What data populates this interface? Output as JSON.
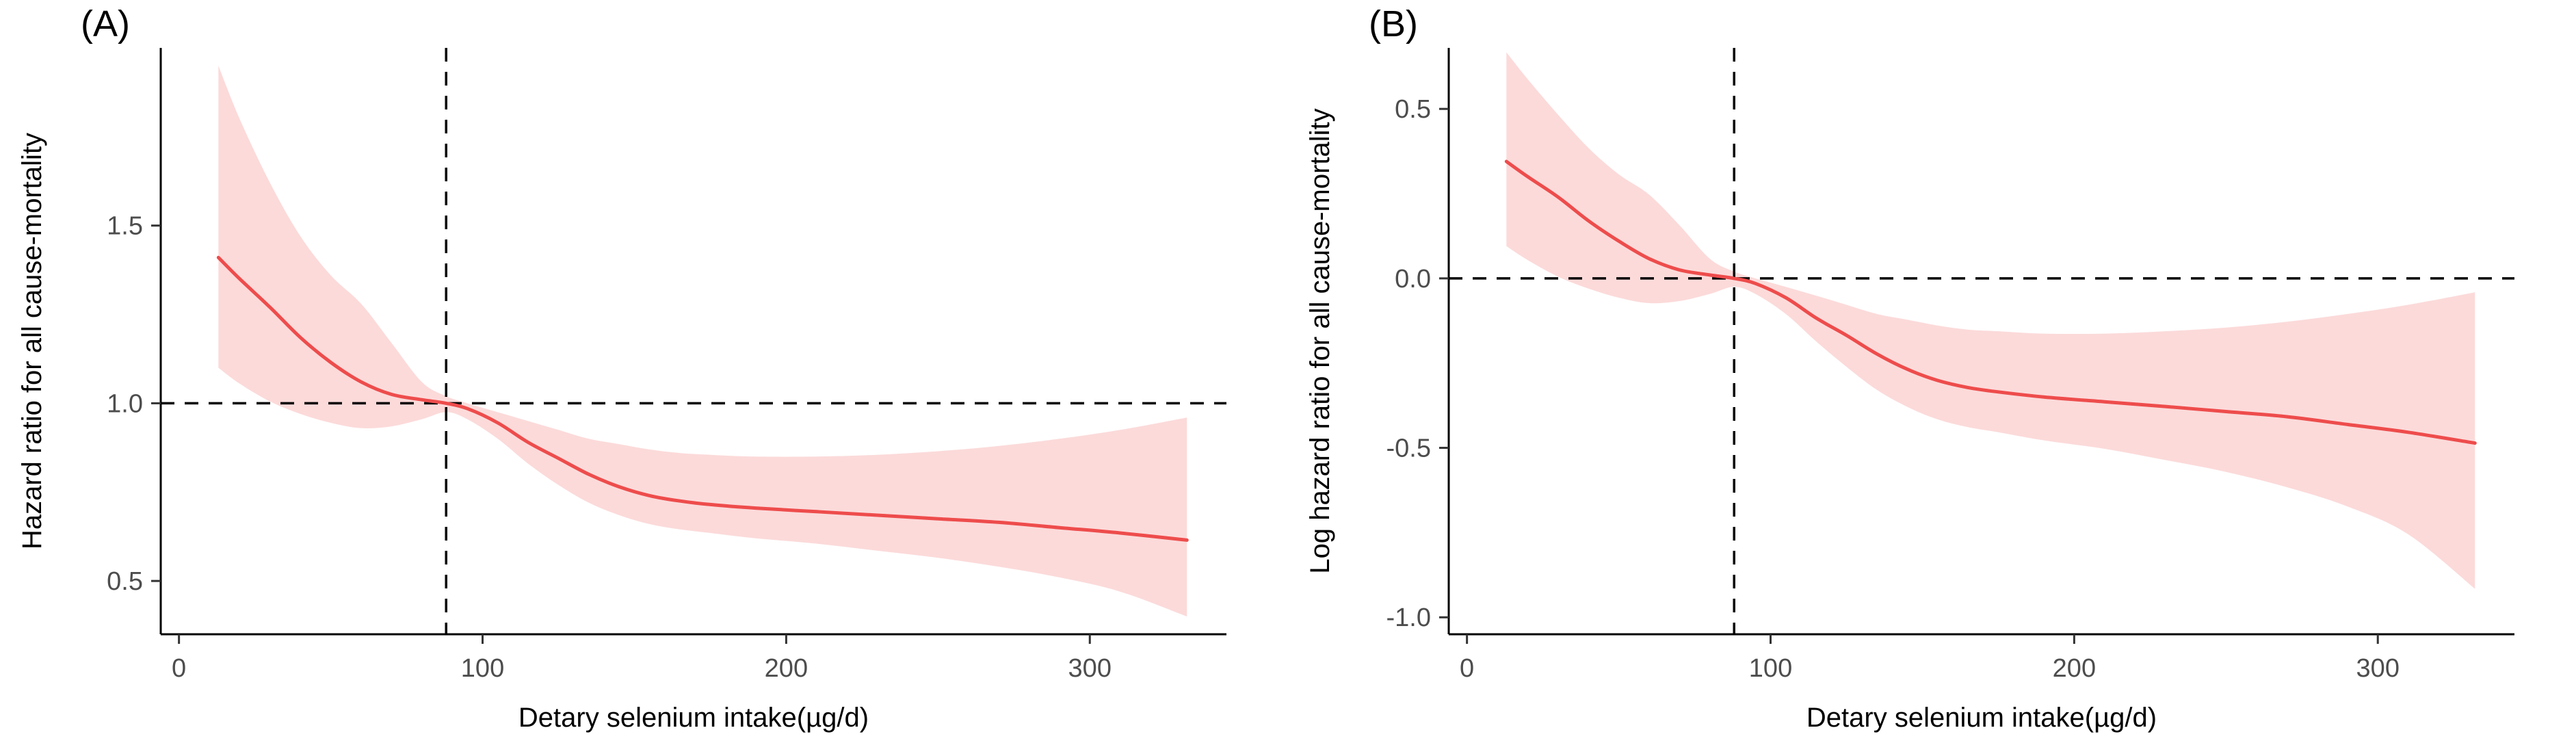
{
  "page": {
    "background": "#ffffff"
  },
  "panels": [
    {
      "label": "(A)"
    },
    {
      "label": "(B)"
    }
  ],
  "chart_data": [
    {
      "type": "line",
      "title": "",
      "xlabel": "Detary selenium intake(µg/d)",
      "ylabel": "Hazard ratio for all cause-mortality",
      "xlim": [
        -6,
        345
      ],
      "ylim": [
        0.35,
        2.0
      ],
      "grid": false,
      "legend": "none",
      "xticks": {
        "values": [
          0,
          100,
          200,
          300
        ],
        "labels": [
          "0",
          "100",
          "200",
          "300"
        ]
      },
      "yticks": {
        "values": [
          0.5,
          1.0,
          1.5
        ],
        "labels": [
          "0.5",
          "1.0",
          "1.5"
        ]
      },
      "reference_lines": {
        "h": 1.0,
        "v": 88
      },
      "colors": {
        "line": "#ee4c4c",
        "band": "#fcdada",
        "reference": "#000000"
      },
      "series": [
        {
          "name": "spline",
          "x": [
            13,
            20,
            30,
            40,
            50,
            60,
            70,
            80,
            88,
            95,
            105,
            115,
            125,
            135,
            145,
            155,
            165,
            175,
            190,
            210,
            230,
            250,
            270,
            290,
            310,
            332
          ],
          "y": [
            1.41,
            1.35,
            1.27,
            1.185,
            1.115,
            1.06,
            1.025,
            1.01,
            1.0,
            0.985,
            0.945,
            0.89,
            0.845,
            0.8,
            0.765,
            0.74,
            0.725,
            0.715,
            0.705,
            0.695,
            0.685,
            0.675,
            0.665,
            0.65,
            0.635,
            0.615
          ]
        },
        {
          "name": "ci_upper",
          "x": [
            13,
            20,
            30,
            40,
            50,
            60,
            70,
            80,
            88,
            95,
            105,
            115,
            125,
            135,
            145,
            155,
            165,
            175,
            190,
            210,
            230,
            250,
            270,
            290,
            310,
            332
          ],
          "y": [
            1.95,
            1.8,
            1.62,
            1.47,
            1.36,
            1.28,
            1.17,
            1.06,
            1.02,
            1.0,
            0.975,
            0.95,
            0.925,
            0.9,
            0.885,
            0.87,
            0.86,
            0.855,
            0.85,
            0.85,
            0.855,
            0.865,
            0.88,
            0.9,
            0.925,
            0.96
          ]
        },
        {
          "name": "ci_lower",
          "x": [
            13,
            20,
            30,
            40,
            50,
            60,
            70,
            80,
            88,
            95,
            105,
            115,
            125,
            135,
            145,
            155,
            165,
            175,
            190,
            210,
            230,
            250,
            270,
            290,
            310,
            332
          ],
          "y": [
            1.1,
            1.055,
            1.005,
            0.97,
            0.945,
            0.93,
            0.935,
            0.955,
            0.975,
            0.955,
            0.9,
            0.83,
            0.77,
            0.72,
            0.685,
            0.66,
            0.645,
            0.635,
            0.62,
            0.605,
            0.585,
            0.565,
            0.54,
            0.51,
            0.47,
            0.4
          ]
        }
      ]
    },
    {
      "type": "line",
      "title": "",
      "xlabel": "Detary selenium intake(µg/d)",
      "ylabel": "Log hazard ratio for all cause-mortality",
      "xlim": [
        -6,
        345
      ],
      "ylim": [
        -1.05,
        0.68
      ],
      "grid": false,
      "legend": "none",
      "xticks": {
        "values": [
          0,
          100,
          200,
          300
        ],
        "labels": [
          "0",
          "100",
          "200",
          "300"
        ]
      },
      "yticks": {
        "values": [
          -1.0,
          -0.5,
          0.0,
          0.5
        ],
        "labels": [
          "-1.0",
          "-0.5",
          "0.0",
          "0.5"
        ]
      },
      "reference_lines": {
        "h": 0.0,
        "v": 88
      },
      "colors": {
        "line": "#ee4c4c",
        "band": "#fcdada",
        "reference": "#000000"
      },
      "series": [
        {
          "name": "spline",
          "x": [
            13,
            20,
            30,
            40,
            50,
            60,
            70,
            80,
            88,
            95,
            105,
            115,
            125,
            135,
            145,
            155,
            165,
            175,
            190,
            210,
            230,
            250,
            270,
            290,
            310,
            332
          ],
          "y": [
            0.345,
            0.3,
            0.24,
            0.17,
            0.11,
            0.058,
            0.025,
            0.01,
            0.0,
            -0.015,
            -0.057,
            -0.117,
            -0.168,
            -0.223,
            -0.268,
            -0.301,
            -0.322,
            -0.335,
            -0.35,
            -0.364,
            -0.378,
            -0.393,
            -0.408,
            -0.431,
            -0.454,
            -0.486
          ]
        },
        {
          "name": "ci_upper",
          "x": [
            13,
            20,
            30,
            40,
            50,
            60,
            70,
            80,
            88,
            95,
            105,
            115,
            125,
            135,
            145,
            155,
            165,
            175,
            190,
            210,
            230,
            250,
            270,
            290,
            310,
            332
          ],
          "y": [
            0.667,
            0.588,
            0.483,
            0.385,
            0.307,
            0.247,
            0.157,
            0.058,
            0.02,
            0.0,
            -0.025,
            -0.051,
            -0.078,
            -0.105,
            -0.122,
            -0.139,
            -0.151,
            -0.156,
            -0.163,
            -0.163,
            -0.156,
            -0.145,
            -0.128,
            -0.105,
            -0.078,
            -0.041
          ]
        },
        {
          "name": "ci_lower",
          "x": [
            13,
            20,
            30,
            40,
            50,
            60,
            70,
            80,
            88,
            95,
            105,
            115,
            125,
            135,
            145,
            155,
            165,
            175,
            190,
            210,
            230,
            250,
            270,
            290,
            310,
            332
          ],
          "y": [
            0.095,
            0.054,
            0.005,
            -0.03,
            -0.057,
            -0.073,
            -0.067,
            -0.046,
            -0.025,
            -0.046,
            -0.105,
            -0.186,
            -0.261,
            -0.329,
            -0.379,
            -0.416,
            -0.439,
            -0.454,
            -0.478,
            -0.503,
            -0.536,
            -0.571,
            -0.616,
            -0.673,
            -0.755,
            -0.916
          ]
        }
      ]
    }
  ]
}
